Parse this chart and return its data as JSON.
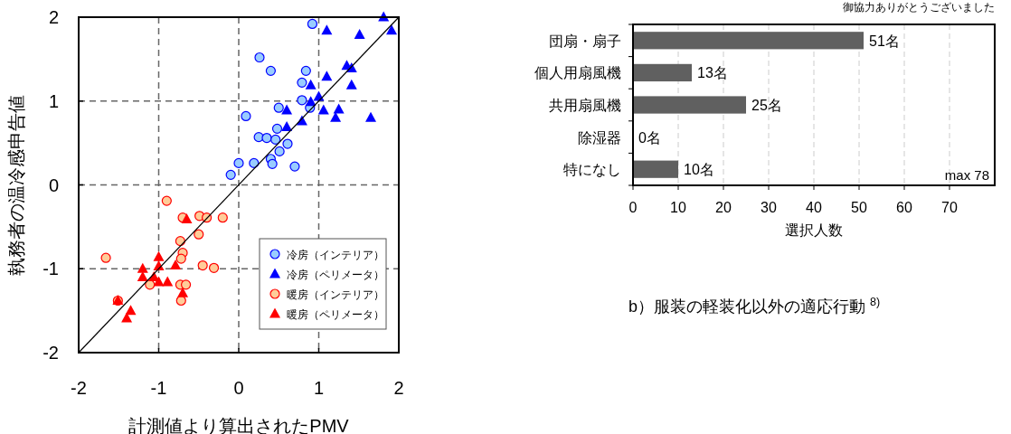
{
  "chart_data": [
    {
      "type": "scatter",
      "xlabel": "計測値より算出されたPMV",
      "ylabel": "執務者の温冷感申告値",
      "xlim": [
        -2,
        2
      ],
      "ylim": [
        -2,
        2
      ],
      "xticks": [
        -2,
        -1,
        0,
        1,
        2
      ],
      "yticks": [
        -2,
        -1,
        0,
        1,
        2
      ],
      "grid": true,
      "legend": "bottom right",
      "series": [
        {
          "name": "冷房（インテリア）",
          "color": "#99ccff",
          "marker": "circle",
          "x": [
            0.92,
            0.26,
            0.4,
            0.84,
            0.79,
            0.79,
            0.5,
            0.89,
            0.09,
            0.48,
            0.25,
            0.35,
            0.46,
            0.61,
            0.51,
            0.4,
            0.42,
            0.0,
            0.19,
            0.7,
            -0.1
          ],
          "values": [
            1.92,
            1.52,
            1.36,
            1.36,
            1.22,
            1.01,
            0.92,
            0.92,
            0.82,
            0.67,
            0.57,
            0.56,
            0.54,
            0.49,
            0.4,
            0.31,
            0.25,
            0.26,
            0.26,
            0.22,
            0.12
          ]
        },
        {
          "name": "冷房（ペリメータ）",
          "color": "#0000ff",
          "marker": "triangle",
          "x": [
            1.81,
            1.1,
            1.51,
            1.91,
            1.35,
            1.41,
            1.1,
            0.9,
            1.41,
            1.0,
            0.9,
            0.6,
            1.06,
            1.25,
            1.21,
            1.65,
            0.6,
            0.79
          ],
          "values": [
            2.0,
            1.84,
            1.79,
            1.84,
            1.42,
            1.39,
            1.29,
            1.19,
            1.19,
            1.05,
            0.99,
            0.89,
            0.89,
            0.9,
            0.8,
            0.8,
            0.69,
            0.76
          ]
        },
        {
          "name": "暖房（インテリア）",
          "color": "#ffcc99",
          "marker": "circle",
          "x": [
            -0.9,
            -0.7,
            -0.49,
            -0.4,
            -0.2,
            -0.5,
            -0.73,
            -0.7,
            -0.72,
            -1.66,
            -0.45,
            -0.31,
            -1.11,
            -0.73,
            -0.66,
            -0.72,
            -1.51
          ],
          "values": [
            -0.19,
            -0.39,
            -0.37,
            -0.39,
            -0.39,
            -0.59,
            -0.67,
            -0.81,
            -0.88,
            -0.87,
            -0.96,
            -0.99,
            -1.19,
            -1.19,
            -1.19,
            -1.38,
            -1.38
          ]
        },
        {
          "name": "暖房（ペリメータ）",
          "color": "#ff0000",
          "marker": "triangle",
          "x": [
            -0.65,
            -1.0,
            -0.79,
            -1.2,
            -1.0,
            -1.2,
            -1.06,
            -1.0,
            -0.89,
            -0.7,
            -1.51,
            -1.35,
            -1.4
          ],
          "values": [
            -0.41,
            -0.86,
            -0.96,
            -1.0,
            -0.97,
            -1.1,
            -1.1,
            -1.16,
            -1.16,
            -1.29,
            -1.38,
            -1.5,
            -1.59
          ]
        },
        {
          "type": "line",
          "color": "#000000",
          "x": [
            -2,
            2
          ],
          "values": [
            -2,
            2
          ]
        }
      ]
    },
    {
      "type": "bar",
      "orientation": "horizontal",
      "categories": [
        "団扇・扇子",
        "個人用扇風機",
        "共用扇風機",
        "除湿器",
        "特になし"
      ],
      "values": [
        51,
        13,
        25,
        0,
        10
      ],
      "value_labels": [
        "51名",
        "13名",
        "25名",
        "0名",
        "10名"
      ],
      "color": "#606060",
      "xlabel": "選択人数",
      "xlim": [
        0,
        80
      ],
      "xticks": [
        0,
        10,
        20,
        30,
        40,
        50,
        60,
        70
      ],
      "grid": "x",
      "annotations": [
        "max 78",
        "b）服装の軽装化以外の適応行動 $^{8)}$",
        "御協力ありがとうございました"
      ]
    }
  ]
}
